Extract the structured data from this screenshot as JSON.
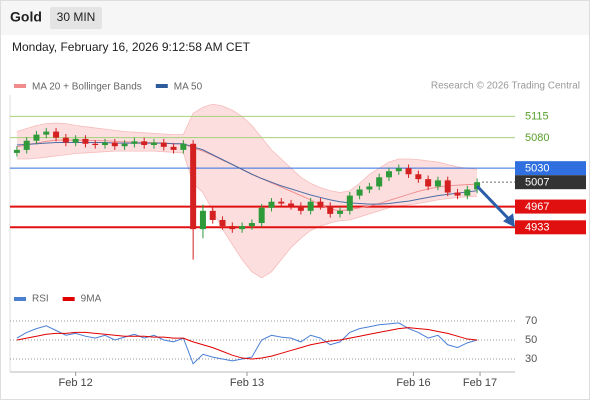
{
  "header": {
    "title": "Gold",
    "timeframe": "30 MIN",
    "datetime": "Monday, February 16, 2026 9:12:58 AM CET"
  },
  "chart_data": [
    {
      "type": "candlestick",
      "source": "Research © 2026 Trading Central",
      "xlim": [
        0,
        48
      ],
      "xticks": [
        {
          "value": 6.5,
          "label": "Feb 12"
        },
        {
          "value": 24,
          "label": "Feb 13"
        },
        {
          "value": 41,
          "label": "Feb 16"
        },
        {
          "value": 47.8,
          "label": "Feb 17"
        }
      ],
      "ylim": [
        4840,
        5150
      ],
      "up_color": "#2e9a3a",
      "down_color": "#d42020",
      "open": [
        5055,
        5060,
        5075,
        5085,
        5090,
        5080,
        5072,
        5078,
        5070,
        5068,
        5072,
        5066,
        5070,
        5074,
        5068,
        5072,
        5065,
        5060,
        5070,
        4930,
        4960,
        4945,
        4935,
        4930,
        4935,
        4940,
        4965,
        4975,
        4972,
        4968,
        4960,
        4975,
        4968,
        4955,
        4960,
        4985,
        4995,
        5000,
        5015,
        5025,
        5030,
        5020,
        5012,
        5000,
        5010,
        4990,
        4985,
        4995
      ],
      "high": [
        5066,
        5081,
        5091,
        5096,
        5096,
        5086,
        5084,
        5084,
        5076,
        5078,
        5078,
        5076,
        5080,
        5080,
        5078,
        5078,
        5071,
        5076,
        5076,
        4970,
        4966,
        4951,
        4941,
        4941,
        4946,
        4971,
        4981,
        4981,
        4978,
        4974,
        4981,
        4981,
        4974,
        4966,
        4991,
        5001,
        5006,
        5021,
        5031,
        5036,
        5036,
        5026,
        5018,
        5016,
        5016,
        4996,
        5001,
        5013
      ],
      "low": [
        5049,
        5054,
        5069,
        5079,
        5074,
        5066,
        5066,
        5064,
        5062,
        5062,
        5060,
        5060,
        5064,
        5062,
        5062,
        5059,
        5054,
        5054,
        4880,
        4915,
        4939,
        4929,
        4924,
        4924,
        4929,
        4934,
        4959,
        4966,
        4962,
        4954,
        4954,
        4962,
        4949,
        4949,
        4954,
        4979,
        4989,
        4994,
        5009,
        5019,
        5014,
        5006,
        4994,
        4994,
        4984,
        4979,
        4979,
        4989
      ],
      "close": [
        5060,
        5075,
        5085,
        5090,
        5080,
        5072,
        5078,
        5070,
        5068,
        5072,
        5066,
        5070,
        5074,
        5068,
        5072,
        5065,
        5060,
        5070,
        4930,
        4960,
        4945,
        4935,
        4930,
        4935,
        4940,
        4965,
        4975,
        4972,
        4968,
        4960,
        4975,
        4968,
        4955,
        4960,
        4985,
        4995,
        5000,
        5015,
        5025,
        5030,
        5020,
        5012,
        5000,
        5010,
        4990,
        4985,
        4995,
        5007
      ],
      "series": [
        {
          "name": "MA 20 + Bollinger Bands",
          "color": "#f28b8b",
          "values": [
            5065,
            5068,
            5071,
            5074,
            5076,
            5076,
            5076,
            5076,
            5075,
            5075,
            5074,
            5073,
            5073,
            5072,
            5072,
            5071,
            5070,
            5070,
            5063,
            5058,
            5051,
            5043,
            5036,
            5028,
            5020,
            5013,
            5006,
            4999,
            4992,
            4985,
            4978,
            4970,
            4963,
            4960,
            4962,
            4965,
            4968,
            4972,
            4977,
            4982,
            4987,
            4992,
            4996,
            4999,
            5001,
            5002,
            5003,
            5004
          ],
          "upper": [
            5090,
            5095,
            5100,
            5103,
            5104,
            5103,
            5100,
            5098,
            5096,
            5094,
            5092,
            5090,
            5089,
            5088,
            5087,
            5086,
            5085,
            5085,
            5120,
            5130,
            5135,
            5132,
            5125,
            5115,
            5100,
            5080,
            5060,
            5045,
            5030,
            5015,
            5005,
            4998,
            4993,
            4990,
            4993,
            5005,
            5020,
            5030,
            5040,
            5045,
            5045,
            5044,
            5042,
            5040,
            5036,
            5032,
            5030,
            5028
          ],
          "lower": [
            5045,
            5045,
            5046,
            5048,
            5050,
            5052,
            5054,
            5055,
            5056,
            5057,
            5058,
            5058,
            5058,
            5058,
            5058,
            5057,
            5056,
            5055,
            5005,
            4990,
            4960,
            4930,
            4905,
            4880,
            4860,
            4850,
            4860,
            4880,
            4900,
            4915,
            4928,
            4935,
            4940,
            4944,
            4945,
            4950,
            4955,
            4960,
            4965,
            4968,
            4970,
            4972,
            4975,
            4978,
            4980,
            4982,
            4983,
            4984
          ]
        },
        {
          "name": "MA 50",
          "color": "#2e5b9c",
          "values": [
            5068,
            5069,
            5070,
            5071,
            5072,
            5072,
            5072,
            5072,
            5072,
            5072,
            5071,
            5071,
            5071,
            5071,
            5071,
            5071,
            5070,
            5070,
            5065,
            5060,
            5052,
            5044,
            5036,
            5028,
            5020,
            5013,
            5007,
            5001,
            4996,
            4991,
            4986,
            4982,
            4978,
            4975,
            4973,
            4972,
            4971,
            4971,
            4972,
            4974,
            4976,
            4979,
            4982,
            4985,
            4987,
            4989,
            4991,
            4993
          ]
        }
      ],
      "levels": [
        {
          "value": 5115,
          "color": "#a6d27a",
          "text_color": "#5aa02c",
          "box": false
        },
        {
          "value": 5080,
          "color": "#a6d27a",
          "text_color": "#5aa02c",
          "box": false
        },
        {
          "value": 5030,
          "color": "#2f6fdf",
          "text_color": "#ffffff",
          "box": true
        },
        {
          "value": 5007,
          "color": "#333333",
          "text_color": "#ffffff",
          "box": true,
          "dashed": true
        },
        {
          "value": 4967,
          "color": "#e01010",
          "text_color": "#ffffff",
          "box": true
        },
        {
          "value": 4933,
          "color": "#e01010",
          "text_color": "#ffffff",
          "box": true
        }
      ]
    },
    {
      "type": "line",
      "xlim": [
        0,
        48
      ],
      "ylim": [
        20,
        80
      ],
      "yticks": [
        30,
        50,
        70
      ],
      "series": [
        {
          "name": "RSI",
          "color": "#4a7fd4",
          "values": [
            52,
            58,
            62,
            65,
            60,
            55,
            57,
            54,
            52,
            55,
            50,
            53,
            56,
            52,
            55,
            50,
            48,
            52,
            25,
            35,
            32,
            30,
            28,
            30,
            32,
            50,
            55,
            53,
            52,
            48,
            55,
            52,
            45,
            48,
            58,
            62,
            64,
            66,
            67,
            68,
            62,
            58,
            52,
            55,
            45,
            42,
            47,
            50
          ]
        },
        {
          "name": "9MA",
          "color": "#e00000",
          "values": [
            50,
            52,
            54,
            56,
            57,
            57,
            58,
            58,
            57,
            56,
            55,
            54,
            54,
            54,
            53,
            53,
            52,
            52,
            48,
            45,
            42,
            38,
            34,
            31,
            30,
            31,
            33,
            36,
            39,
            42,
            45,
            47,
            49,
            50,
            52,
            54,
            56,
            58,
            60,
            62,
            63,
            62,
            61,
            59,
            57,
            54,
            51,
            50
          ]
        }
      ]
    }
  ]
}
